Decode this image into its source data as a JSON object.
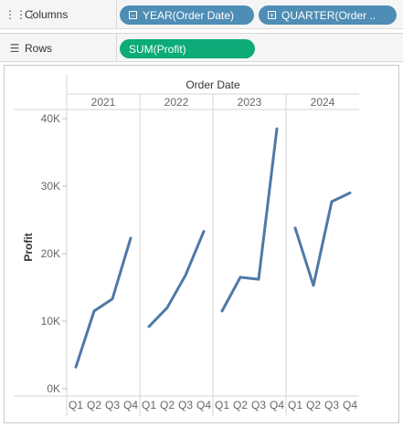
{
  "shelves": {
    "columns": {
      "label": "Columns",
      "icon": "columns-icon",
      "pills": [
        {
          "label": "YEAR(Order Date)",
          "type": "dimension",
          "icon": "collapse-minus-icon"
        },
        {
          "label": "QUARTER(Order ..",
          "type": "dimension",
          "icon": "expand-plus-icon"
        }
      ]
    },
    "rows": {
      "label": "Rows",
      "icon": "rows-icon",
      "pills": [
        {
          "label": "SUM(Profit)",
          "type": "measure"
        }
      ]
    }
  },
  "colors": {
    "dimension_pill": "#4e8db5",
    "measure_pill": "#0cab78",
    "line": "#4e79a7"
  },
  "chart_data": {
    "type": "line",
    "header_title": "Order Date",
    "ylabel": "Profit",
    "ylim": [
      0,
      40000
    ],
    "yticks": [
      0,
      10000,
      20000,
      30000,
      40000
    ],
    "ytick_labels": [
      "0K",
      "10K",
      "20K",
      "30K",
      "40K"
    ],
    "quarters": [
      "Q1",
      "Q2",
      "Q3",
      "Q4"
    ],
    "panes": [
      {
        "year": "2021",
        "values": [
          3200,
          11500,
          13300,
          22300
        ]
      },
      {
        "year": "2022",
        "values": [
          9200,
          12000,
          16800,
          23300
        ]
      },
      {
        "year": "2023",
        "values": [
          11500,
          16500,
          16200,
          38500
        ]
      },
      {
        "year": "2024",
        "values": [
          23800,
          15300,
          27700,
          29000
        ]
      }
    ],
    "grid": true
  }
}
